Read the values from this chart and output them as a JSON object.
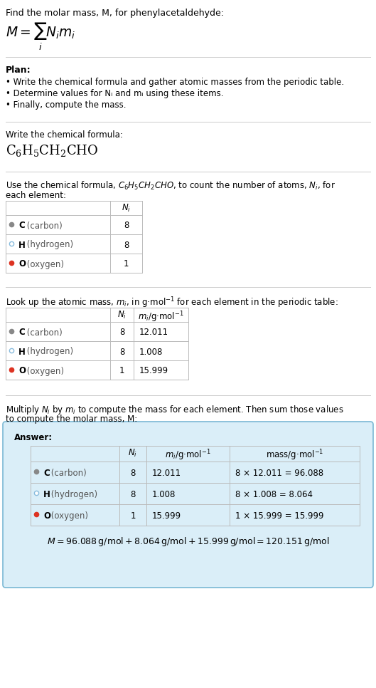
{
  "bg_color": "#ffffff",
  "title": "Find the molar mass, M, for phenylacetaldehyde:",
  "plan_header": "Plan:",
  "plan_bullets": [
    "• Write the chemical formula and gather atomic masses from the periodic table.",
    "• Determine values for Nᵢ and mᵢ using these items.",
    "• Finally, compute the mass."
  ],
  "step1_header": "Write the chemical formula:",
  "step2_intro": "Use the chemical formula, C₆H₅CH₂CHO, to count the number of atoms, Nᵢ, for each element:",
  "step3_intro": "Look up the atomic mass, mᵢ, in g·mol⁻¹ for each element in the periodic table:",
  "step4_intro1": "Multiply Nᵢ by mᵢ to compute the mass for each element. Then sum those values",
  "step4_intro2": "to compute the molar mass, M:",
  "answer_label": "Answer:",
  "table_rows": [
    {
      "element": "C",
      "label": " (carbon)",
      "dot_color": "#888888",
      "dot_filled": true,
      "Ni": "8",
      "mi": "12.011",
      "mass": "8 × 12.011 = 96.088"
    },
    {
      "element": "H",
      "label": " (hydrogen)",
      "dot_color": "#88bbdd",
      "dot_filled": false,
      "Ni": "8",
      "mi": "1.008",
      "mass": "8 × 1.008 = 8.064"
    },
    {
      "element": "O",
      "label": " (oxygen)",
      "dot_color": "#dd3322",
      "dot_filled": true,
      "Ni": "1",
      "mi": "15.999",
      "mass": "1 × 15.999 = 15.999"
    }
  ],
  "final_eq": "M = 96.088 g/mol + 8.064 g/mol + 15.999 g/mol = 120.151 g/mol",
  "answer_box_bg": "#daeef8",
  "answer_box_border": "#7ab8d4",
  "line_color": "#cccccc",
  "table_line_color": "#bbbbbb",
  "fs_title": 9.8,
  "fs_body": 9.0,
  "fs_small": 8.5,
  "fs_formula": 13.5,
  "fs_chem": 13.0
}
